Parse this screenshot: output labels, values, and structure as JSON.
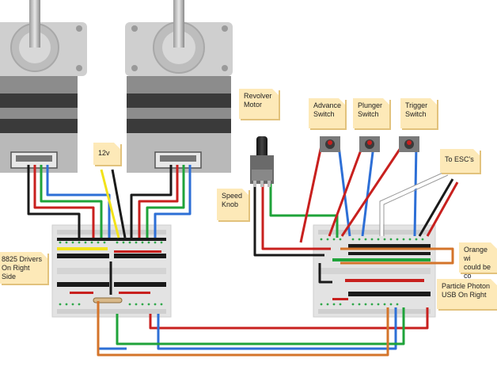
{
  "labels": {
    "revolver_motor": "Revolver\nMotor",
    "v12": "12v",
    "speed_knob": "Speed\nKnob",
    "advance_switch": "Advance\nSwitch",
    "plunger_switch": "Plunger\nSwitch",
    "trigger_switch": "Trigger\nSwitch",
    "to_escs": "To ESC's",
    "drivers": "8825 Drivers\nOn Right Side",
    "orange_wire": "Orange wi\ncould be co",
    "photon": "Particle Photon\nUSB On Right"
  },
  "colors": {
    "red": "#c8201e",
    "green": "#1fa33a",
    "blue": "#2d6fd6",
    "black": "#1a1a1a",
    "yellow": "#f2e21a",
    "orange": "#d4742a",
    "note": "#fde9b8",
    "breadboard": "#e6e6e6"
  }
}
